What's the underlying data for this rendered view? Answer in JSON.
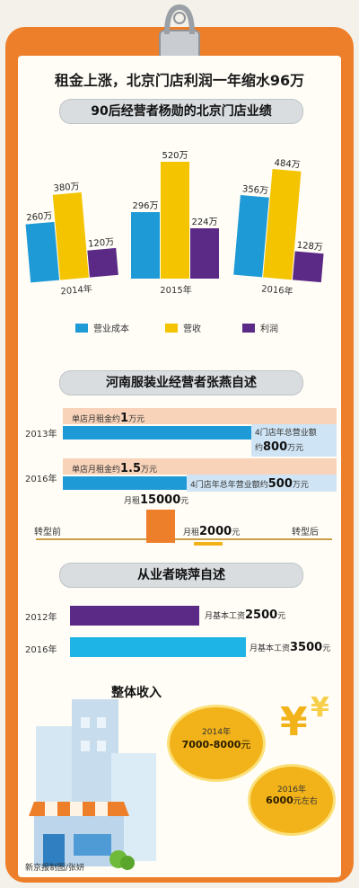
{
  "page": {
    "title": "租金上涨，北京门店利润一年缩水96万",
    "credit": "新京报制图/张妍"
  },
  "colors": {
    "board": "#ee7f2a",
    "cost": "#1e9ad6",
    "revenue": "#f5c400",
    "profit": "#5b2a86",
    "rent_band": "#f8d3b9",
    "revenue_band": "#cfe4f4",
    "gold": "#f2b31a"
  },
  "section1": {
    "heading": "90后经营者杨勋的北京门店业绩",
    "unit_suffix": "万"
  },
  "chart_data": {
    "type": "bar",
    "title": "90后经营者杨勋的北京门店业绩",
    "categories": [
      "2014年",
      "2015年",
      "2016年"
    ],
    "series": [
      {
        "name": "营业成本",
        "values": [
          260,
          296,
          356
        ]
      },
      {
        "name": "营收",
        "values": [
          380,
          520,
          484
        ]
      },
      {
        "name": "利润",
        "values": [
          120,
          224,
          128
        ]
      }
    ],
    "value_labels": [
      [
        "260万",
        "380万",
        "120万"
      ],
      [
        "296万",
        "520万",
        "224万"
      ],
      [
        "356万",
        "484万",
        "128万"
      ]
    ],
    "legend": [
      "营业成本",
      "营收",
      "利润"
    ],
    "legend_position": "bottom",
    "grid": false
  },
  "section2": {
    "heading": "河南服装业经营者张燕自述",
    "rows": [
      {
        "year": "2013年",
        "rent": "单店月租金约",
        "rent_num": "1",
        "rent_unit": "万元",
        "rev_pre": "4门店年总营业额",
        "rev_pre2": "约",
        "rev_num": "800",
        "rev_unit": "万元"
      },
      {
        "year": "2016年",
        "rent": "单店月租金约",
        "rent_num": "1.5",
        "rent_unit": "万元",
        "rev_pre": "4门店年总年营业额约",
        "rev_num": "500",
        "rev_unit": "万元"
      }
    ],
    "transform": {
      "before_label": "转型前",
      "after_label": "转型后",
      "rent_before_pre": "月租",
      "rent_before_num": "15000",
      "rent_before_unit": "元",
      "rent_after_pre": "月租",
      "rent_after_num": "2000",
      "rent_after_unit": "元"
    }
  },
  "section3": {
    "heading": "从业者晓萍自述",
    "rows": [
      {
        "year": "2012年",
        "label": "月基本工资",
        "num": "2500",
        "unit": "元",
        "value": 2500
      },
      {
        "year": "2016年",
        "label": "月基本工资",
        "num": "3500",
        "unit": "元",
        "value": 3500
      }
    ]
  },
  "income": {
    "heading": "整体收入",
    "coin1_year": "2014年",
    "coin1_value": "7000-8000",
    "coin1_unit": "元",
    "coin2_year": "2016年",
    "coin2_value": "6000",
    "coin2_unit": "元左右",
    "yen": "¥"
  }
}
